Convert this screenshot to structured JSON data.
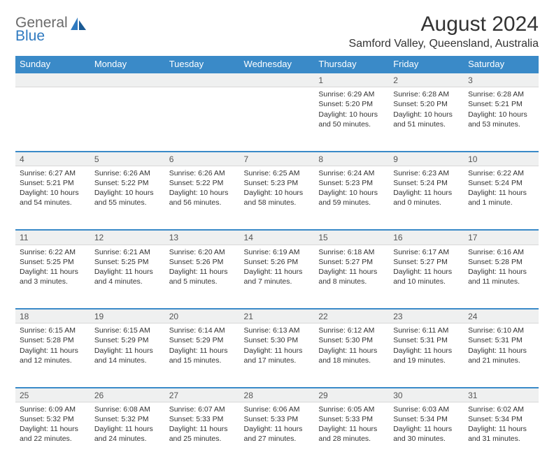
{
  "header": {
    "logo_line1": "General",
    "logo_line2": "Blue",
    "title": "August 2024",
    "subtitle": "Samford Valley, Queensland, Australia"
  },
  "colors": {
    "header_band": "#3a8ac8",
    "row_separator": "#3a8ac8",
    "daynum_bg": "#eff0f0",
    "logo_gray": "#6a6a6a",
    "logo_blue": "#2f7ac0"
  },
  "days_of_week": [
    "Sunday",
    "Monday",
    "Tuesday",
    "Wednesday",
    "Thursday",
    "Friday",
    "Saturday"
  ],
  "weeks": [
    [
      null,
      null,
      null,
      null,
      {
        "n": "1",
        "sunrise": "6:29 AM",
        "sunset": "5:20 PM",
        "daylight": "10 hours and 50 minutes."
      },
      {
        "n": "2",
        "sunrise": "6:28 AM",
        "sunset": "5:20 PM",
        "daylight": "10 hours and 51 minutes."
      },
      {
        "n": "3",
        "sunrise": "6:28 AM",
        "sunset": "5:21 PM",
        "daylight": "10 hours and 53 minutes."
      }
    ],
    [
      {
        "n": "4",
        "sunrise": "6:27 AM",
        "sunset": "5:21 PM",
        "daylight": "10 hours and 54 minutes."
      },
      {
        "n": "5",
        "sunrise": "6:26 AM",
        "sunset": "5:22 PM",
        "daylight": "10 hours and 55 minutes."
      },
      {
        "n": "6",
        "sunrise": "6:26 AM",
        "sunset": "5:22 PM",
        "daylight": "10 hours and 56 minutes."
      },
      {
        "n": "7",
        "sunrise": "6:25 AM",
        "sunset": "5:23 PM",
        "daylight": "10 hours and 58 minutes."
      },
      {
        "n": "8",
        "sunrise": "6:24 AM",
        "sunset": "5:23 PM",
        "daylight": "10 hours and 59 minutes."
      },
      {
        "n": "9",
        "sunrise": "6:23 AM",
        "sunset": "5:24 PM",
        "daylight": "11 hours and 0 minutes."
      },
      {
        "n": "10",
        "sunrise": "6:22 AM",
        "sunset": "5:24 PM",
        "daylight": "11 hours and 1 minute."
      }
    ],
    [
      {
        "n": "11",
        "sunrise": "6:22 AM",
        "sunset": "5:25 PM",
        "daylight": "11 hours and 3 minutes."
      },
      {
        "n": "12",
        "sunrise": "6:21 AM",
        "sunset": "5:25 PM",
        "daylight": "11 hours and 4 minutes."
      },
      {
        "n": "13",
        "sunrise": "6:20 AM",
        "sunset": "5:26 PM",
        "daylight": "11 hours and 5 minutes."
      },
      {
        "n": "14",
        "sunrise": "6:19 AM",
        "sunset": "5:26 PM",
        "daylight": "11 hours and 7 minutes."
      },
      {
        "n": "15",
        "sunrise": "6:18 AM",
        "sunset": "5:27 PM",
        "daylight": "11 hours and 8 minutes."
      },
      {
        "n": "16",
        "sunrise": "6:17 AM",
        "sunset": "5:27 PM",
        "daylight": "11 hours and 10 minutes."
      },
      {
        "n": "17",
        "sunrise": "6:16 AM",
        "sunset": "5:28 PM",
        "daylight": "11 hours and 11 minutes."
      }
    ],
    [
      {
        "n": "18",
        "sunrise": "6:15 AM",
        "sunset": "5:28 PM",
        "daylight": "11 hours and 12 minutes."
      },
      {
        "n": "19",
        "sunrise": "6:15 AM",
        "sunset": "5:29 PM",
        "daylight": "11 hours and 14 minutes."
      },
      {
        "n": "20",
        "sunrise": "6:14 AM",
        "sunset": "5:29 PM",
        "daylight": "11 hours and 15 minutes."
      },
      {
        "n": "21",
        "sunrise": "6:13 AM",
        "sunset": "5:30 PM",
        "daylight": "11 hours and 17 minutes."
      },
      {
        "n": "22",
        "sunrise": "6:12 AM",
        "sunset": "5:30 PM",
        "daylight": "11 hours and 18 minutes."
      },
      {
        "n": "23",
        "sunrise": "6:11 AM",
        "sunset": "5:31 PM",
        "daylight": "11 hours and 19 minutes."
      },
      {
        "n": "24",
        "sunrise": "6:10 AM",
        "sunset": "5:31 PM",
        "daylight": "11 hours and 21 minutes."
      }
    ],
    [
      {
        "n": "25",
        "sunrise": "6:09 AM",
        "sunset": "5:32 PM",
        "daylight": "11 hours and 22 minutes."
      },
      {
        "n": "26",
        "sunrise": "6:08 AM",
        "sunset": "5:32 PM",
        "daylight": "11 hours and 24 minutes."
      },
      {
        "n": "27",
        "sunrise": "6:07 AM",
        "sunset": "5:33 PM",
        "daylight": "11 hours and 25 minutes."
      },
      {
        "n": "28",
        "sunrise": "6:06 AM",
        "sunset": "5:33 PM",
        "daylight": "11 hours and 27 minutes."
      },
      {
        "n": "29",
        "sunrise": "6:05 AM",
        "sunset": "5:33 PM",
        "daylight": "11 hours and 28 minutes."
      },
      {
        "n": "30",
        "sunrise": "6:03 AM",
        "sunset": "5:34 PM",
        "daylight": "11 hours and 30 minutes."
      },
      {
        "n": "31",
        "sunrise": "6:02 AM",
        "sunset": "5:34 PM",
        "daylight": "11 hours and 31 minutes."
      }
    ]
  ],
  "labels": {
    "sunrise_prefix": "Sunrise: ",
    "sunset_prefix": "Sunset: ",
    "daylight_prefix": "Daylight: "
  }
}
